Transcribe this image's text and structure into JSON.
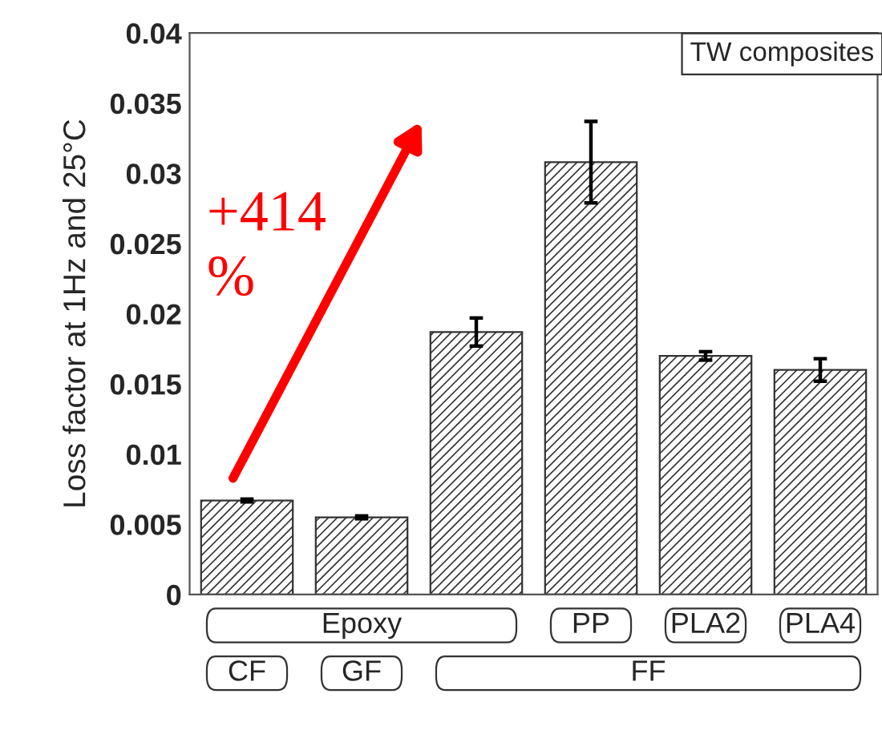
{
  "chart_data": {
    "type": "bar",
    "ylabel": "Loss factor at 1Hz and 25°C",
    "categories": [
      null,
      null,
      null,
      null,
      null,
      null
    ],
    "values": [
      0.0067,
      0.0055,
      0.0187,
      0.0308,
      0.017,
      0.016
    ],
    "errors": [
      0.0001,
      0.0001,
      0.001,
      0.0029,
      0.0003,
      0.0008
    ],
    "color": "#333333",
    "ylim": [
      0,
      0.04
    ],
    "yticks": [
      0,
      0.005,
      0.01,
      0.015,
      0.02,
      0.025,
      0.03,
      0.035,
      0.04
    ],
    "tick_labels": "y",
    "grid": false,
    "annotations": [
      "TW composites",
      "+414\n%",
      "Epoxy",
      "PP",
      "PLA2",
      "PLA4",
      "CF",
      "GF",
      "FF"
    ]
  }
}
